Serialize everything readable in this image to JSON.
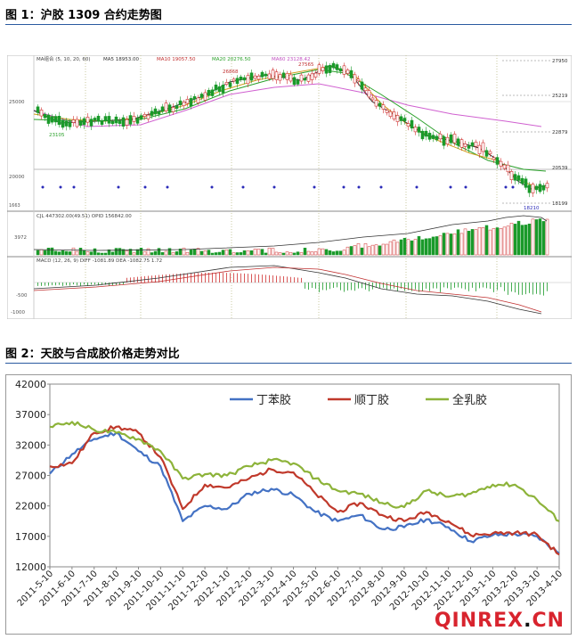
{
  "figure1": {
    "caption": "图 1：沪胶 1309 合约走势图",
    "ma_legend": "MA组合 (5, 10, 20, 60)",
    "ma5": "MA5 18953.00",
    "ma10": "MA10 19057.50",
    "ma20": "MA20 20276.50",
    "ma60": "MA60 23128.42",
    "price_labels": [
      "27950",
      "25219",
      "22879",
      "20539",
      "18199"
    ],
    "left_axis": [
      "25000",
      "20000"
    ],
    "annotations": [
      "26868",
      "27565",
      "23105",
      "18210"
    ],
    "vol_legend": "CJL 447302.00(49.51)  OPID 156842.00",
    "vol_axis": "3972",
    "macd_legend": "MACD (12, 26, 9)  DIFF -1081.89   DEA -1082.75   1.72",
    "macd_axis": [
      "-500",
      "-1000"
    ],
    "id_label": "1663"
  },
  "figure2": {
    "caption": "图 2：天胶与合成胶价格走势对比",
    "watermark_main": "QINREX",
    "watermark_dot": ".",
    "watermark_tld": "CN"
  },
  "chart_data": [
    {
      "type": "line",
      "title": "沪胶 1309 合约走势图",
      "note": "candlestick with MA5/MA10/MA20/MA60, volume and MACD sub-panels",
      "series": [
        {
          "name": "MA60",
          "values": [
            24500,
            24800,
            25100,
            25400,
            25800,
            26200,
            26400,
            26000,
            25300,
            24500,
            23800,
            23128
          ]
        },
        {
          "name": "MA20",
          "values": [
            24200,
            24400,
            24900,
            25600,
            26300,
            26800,
            26600,
            25400,
            24000,
            22600,
            21300,
            20276
          ]
        },
        {
          "name": "MA5",
          "values": [
            24300,
            24000,
            25200,
            26000,
            26700,
            27200,
            27500,
            25000,
            23000,
            21200,
            19500,
            18953
          ]
        }
      ],
      "ylim": [
        17000,
        28500
      ]
    },
    {
      "type": "line",
      "title": "",
      "legend_position": "top",
      "xlabel": "",
      "ylabel": "",
      "ylim": [
        12000,
        42000
      ],
      "yticks": [
        12000,
        17000,
        22000,
        27000,
        32000,
        37000,
        42000
      ],
      "categories": [
        "2011-5-10",
        "2011-6-10",
        "2011-7-10",
        "2011-8-10",
        "2011-9-10",
        "2011-10-10",
        "2011-11-10",
        "2011-12-10",
        "2012-1-10",
        "2012-2-10",
        "2012-3-10",
        "2012-4-10",
        "2012-5-10",
        "2012-6-10",
        "2012-7-10",
        "2012-8-10",
        "2012-9-10",
        "2012-10-10",
        "2012-11-10",
        "2012-12-10",
        "2013-1-10",
        "2013-2-10",
        "2013-3-10",
        "2013-4-10"
      ],
      "series": [
        {
          "name": "丁苯胶",
          "color": "#4472c4",
          "values": [
            27300,
            30500,
            33000,
            34000,
            31000,
            28500,
            19500,
            22000,
            21500,
            24000,
            24800,
            23800,
            21000,
            19500,
            20500,
            18200,
            18500,
            19800,
            18500,
            16200,
            17200,
            17400,
            17000,
            14200
          ]
        },
        {
          "name": "顺丁胶",
          "color": "#c0392b",
          "values": [
            28500,
            29000,
            34000,
            35000,
            34000,
            30000,
            21500,
            25500,
            25000,
            26500,
            28000,
            27500,
            24000,
            21000,
            22500,
            20500,
            19500,
            21000,
            19500,
            17200,
            17500,
            17600,
            17300,
            14000
          ]
        },
        {
          "name": "全乳胶",
          "color": "#8db33a",
          "values": [
            35000,
            35800,
            34500,
            34000,
            33000,
            31000,
            26500,
            27200,
            27000,
            28500,
            29500,
            29000,
            26500,
            24500,
            24000,
            22500,
            21800,
            24500,
            23500,
            24000,
            25500,
            25500,
            23000,
            19500
          ]
        }
      ]
    }
  ]
}
